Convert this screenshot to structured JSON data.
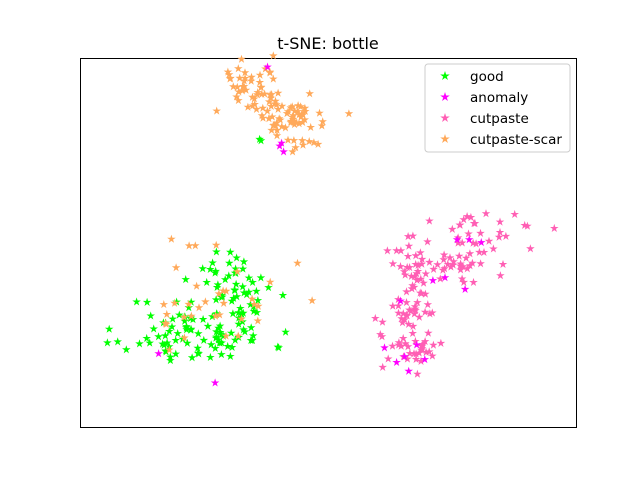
{
  "chart_data": {
    "type": "scatter",
    "title": "t-SNE: bottle",
    "xlabel": "",
    "ylabel": "",
    "xlim": [
      -60,
      60
    ],
    "ylim": [
      -60,
      60
    ],
    "axes_ticks": false,
    "grid": false,
    "legend_position": "top-right",
    "marker": "star",
    "series": [
      {
        "name": "good",
        "color": "#00ff00",
        "clusters": [
          {
            "center": [
              -32,
              -30
            ],
            "spread": [
              9,
              6
            ],
            "count": 95,
            "seed": 11
          },
          {
            "center": [
              -22,
              -15
            ],
            "spread": [
              5,
              6
            ],
            "count": 45,
            "seed": 12
          },
          {
            "center": [
              -15,
              35
            ],
            "spread": [
              1.2,
              0.6
            ],
            "count": 2,
            "seed": 13
          }
        ]
      },
      {
        "name": "anomaly",
        "color": "#ff00ff",
        "points": [
          [
            -42,
            -38
          ],
          [
            -28,
            -48
          ],
          [
            -15,
            60
          ],
          [
            -12,
            33
          ],
          [
            -11,
            31
          ],
          [
            -11.5,
            34
          ],
          [
            18,
            -20
          ],
          [
            14,
            -36
          ],
          [
            17,
            -41
          ],
          [
            19,
            -39
          ],
          [
            20,
            -44
          ],
          [
            22,
            -35
          ],
          [
            24,
            -40
          ],
          [
            26,
            -13
          ],
          [
            29,
            -12
          ],
          [
            34,
            -16
          ],
          [
            32,
            1
          ],
          [
            35,
            1
          ],
          [
            38,
            0
          ]
        ]
      },
      {
        "name": "cutpaste",
        "color": "#ff5fb4",
        "clusters": [
          {
            "center": [
              21,
              -22
            ],
            "spread": [
              3,
              11
            ],
            "count": 70,
            "seed": 21
          },
          {
            "center": [
              30,
              -8
            ],
            "spread": [
              6,
              3
            ],
            "count": 35,
            "seed": 22
          },
          {
            "center": [
              40,
              3
            ],
            "spread": [
              7,
              3
            ],
            "count": 30,
            "seed": 23
          },
          {
            "center": [
              20,
              -38
            ],
            "spread": [
              4,
              3
            ],
            "count": 20,
            "seed": 24
          }
        ]
      },
      {
        "name": "cutpaste-scar",
        "color": "#ffa95a",
        "clusters": [
          {
            "center": [
              -20,
              54
            ],
            "spread": [
              4,
              4
            ],
            "count": 40,
            "seed": 31
          },
          {
            "center": [
              -11,
              45
            ],
            "spread": [
              6,
              3
            ],
            "count": 45,
            "seed": 32
          },
          {
            "center": [
              -8,
              38
            ],
            "spread": [
              3,
              4
            ],
            "count": 25,
            "seed": 33
          },
          {
            "center": [
              -28,
              -20
            ],
            "spread": [
              10,
              11
            ],
            "count": 35,
            "seed": 34
          }
        ]
      }
    ]
  }
}
